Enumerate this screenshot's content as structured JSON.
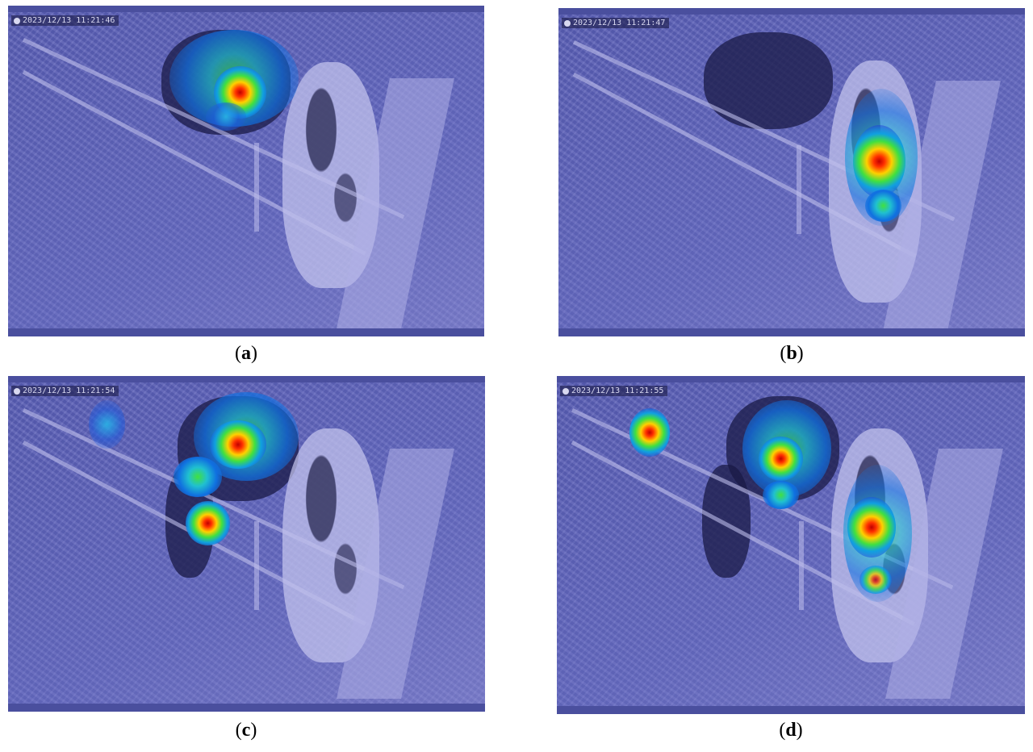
{
  "figure": {
    "panels": [
      {
        "id": "a",
        "timestamp": "2023/12/13 11:21:46",
        "label_open": "(",
        "label_letter": "a",
        "label_close": ")"
      },
      {
        "id": "b",
        "timestamp": "2023/12/13 11:21:47",
        "label_open": "(",
        "label_letter": "b",
        "label_close": ")"
      },
      {
        "id": "c",
        "timestamp": "2023/12/13 11:21:54",
        "label_open": "(",
        "label_letter": "c",
        "label_close": ")"
      },
      {
        "id": "d",
        "timestamp": "2023/12/13 11:21:55",
        "label_open": "(",
        "label_letter": "d",
        "label_close": ")"
      }
    ],
    "colors": {
      "overlay": "#3b3f9a",
      "heat_max": "#c00000",
      "heat_mid": "#ffd000",
      "heat_low": "#40e040"
    }
  }
}
